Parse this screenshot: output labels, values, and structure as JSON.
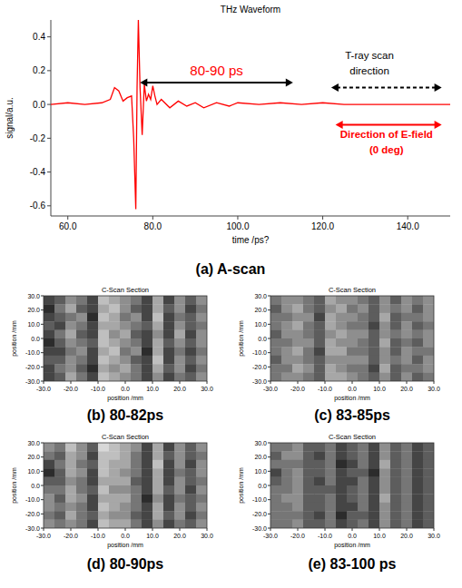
{
  "chart_data": [
    {
      "type": "line",
      "title": "THz Waveform",
      "x_label": "time /ps?",
      "y_label": "signal/a.u.",
      "caption": "(a) A-scan",
      "color": "#ff0000",
      "grid": false,
      "x": [
        56,
        60,
        64,
        68,
        70,
        71,
        72,
        73,
        74,
        75,
        75.5,
        76,
        76.3,
        76.6,
        77,
        77.5,
        78,
        78.5,
        79,
        79.5,
        80,
        80.5,
        81,
        82,
        84,
        86,
        88,
        90,
        92,
        95,
        98,
        100,
        105,
        110,
        115,
        120,
        125,
        130,
        140,
        150
      ],
      "values": [
        0,
        0.01,
        0,
        0.01,
        0.03,
        0.1,
        0.08,
        0.02,
        0.04,
        0.05,
        -0.2,
        -0.62,
        0.1,
        0.5,
        0.1,
        -0.18,
        0.12,
        0.02,
        0.06,
        0.03,
        0.11,
        0.05,
        0,
        0.03,
        -0.02,
        0.02,
        -0.01,
        0.01,
        -0.02,
        0.01,
        -0.01,
        0.01,
        0,
        0.01,
        0,
        0.01,
        0,
        0,
        0,
        0
      ],
      "xlim": [
        56,
        150
      ],
      "ylim": [
        -0.66,
        0.5
      ],
      "xticks": [
        {
          "value": 60,
          "label": "60.0"
        },
        {
          "value": 80,
          "label": "80.0"
        },
        {
          "value": 100,
          "label": "100.0"
        },
        {
          "value": 120,
          "label": "120.0"
        },
        {
          "value": 140,
          "label": "140.0"
        }
      ],
      "yticks": [
        -0.6,
        -0.4,
        -0.2,
        {
          "value": 0,
          "label": "0.0"
        },
        0.2,
        0.4
      ],
      "arrows": [
        {
          "x": [
            77,
            113
          ],
          "y": 0.13,
          "color": "#000000",
          "line_style": "solid"
        },
        {
          "x": [
            122,
            148
          ],
          "y": 0.1,
          "color": "#000000",
          "line_style": "dashed"
        },
        {
          "x": [
            123,
            148
          ],
          "y": -0.12,
          "color": "#ff0000",
          "line_style": "solid"
        }
      ],
      "labels": [
        {
          "text": "80-90 ps",
          "x": 95,
          "y": 0.17,
          "color": "#ff0000"
        },
        {
          "text": "T-ray scan",
          "x": 131,
          "y": 0.27,
          "color": "#000000"
        },
        {
          "text": "direction",
          "x": 131,
          "y": 0.18,
          "color": "#000000"
        },
        {
          "text": "Direction of E-field",
          "x": 135,
          "y": -0.2,
          "color": "#ff0000"
        },
        {
          "text": "(0 deg)",
          "x": 135,
          "y": -0.29,
          "color": "#ff0000"
        }
      ]
    },
    {
      "type": "heatmap",
      "title": "C-Scan Section",
      "x_label": "position /mm",
      "y_label": "position /mm",
      "caption": "(b) 80-82ps",
      "xlim": [
        -30,
        30
      ],
      "ylim": [
        -30,
        30
      ],
      "color_range": [
        0,
        9
      ],
      "xticks": [
        {
          "value": -30,
          "label": "-30.0"
        },
        {
          "value": -20,
          "label": "-20.0"
        },
        {
          "value": -10,
          "label": "-10.0"
        },
        {
          "value": 0,
          "label": "0.0"
        },
        {
          "value": 10,
          "label": "10.0"
        },
        {
          "value": 20,
          "label": "20.0"
        },
        {
          "value": 30,
          "label": "30.0"
        }
      ],
      "yticks": [
        {
          "value": -30,
          "label": "-30.0"
        },
        {
          "value": -20,
          "label": "-20.0"
        },
        {
          "value": -10,
          "label": "-10.0"
        },
        {
          "value": 0,
          "label": "0.0"
        },
        {
          "value": 10,
          "label": "10.0"
        },
        {
          "value": 20,
          "label": "20.0"
        },
        {
          "value": 30,
          "label": "30.0"
        }
      ],
      "cells": [
        [
          2,
          3,
          5,
          4,
          2,
          7,
          6,
          5,
          4,
          2,
          6,
          2,
          5,
          3,
          5
        ],
        [
          1,
          4,
          6,
          3,
          2,
          6,
          7,
          5,
          3,
          2,
          6,
          3,
          5,
          2,
          4
        ],
        [
          2,
          3,
          4,
          5,
          1,
          7,
          6,
          4,
          5,
          2,
          7,
          2,
          4,
          3,
          5
        ],
        [
          3,
          2,
          5,
          4,
          2,
          6,
          6,
          5,
          4,
          3,
          6,
          2,
          5,
          3,
          4
        ],
        [
          2,
          4,
          6,
          3,
          2,
          7,
          5,
          6,
          3,
          2,
          5,
          2,
          6,
          2,
          5
        ],
        [
          1,
          3,
          5,
          4,
          3,
          7,
          6,
          5,
          4,
          2,
          6,
          3,
          5,
          3,
          5
        ],
        [
          2,
          2,
          4,
          5,
          2,
          6,
          7,
          4,
          5,
          1,
          6,
          2,
          4,
          2,
          4
        ],
        [
          3,
          3,
          5,
          4,
          2,
          7,
          6,
          5,
          3,
          2,
          7,
          2,
          5,
          3,
          5
        ],
        [
          2,
          4,
          5,
          3,
          1,
          6,
          5,
          6,
          4,
          2,
          6,
          3,
          5,
          2,
          4
        ],
        [
          2,
          3,
          6,
          4,
          2,
          7,
          6,
          5,
          4,
          2,
          5,
          2,
          4,
          3,
          5
        ]
      ]
    },
    {
      "type": "heatmap",
      "title": "C-Scan Section",
      "x_label": "position /mm",
      "y_label": "position /mm",
      "caption": "(c) 83-85ps",
      "xlim": [
        -30,
        30
      ],
      "ylim": [
        -30,
        30
      ],
      "color_range": [
        0,
        9
      ],
      "xticks": [
        {
          "value": -30,
          "label": "-30.0"
        },
        {
          "value": -20,
          "label": "-20.0"
        },
        {
          "value": -10,
          "label": "-10.0"
        },
        {
          "value": 0,
          "label": "0.0"
        },
        {
          "value": 10,
          "label": "10.0"
        },
        {
          "value": 20,
          "label": "20.0"
        },
        {
          "value": 30,
          "label": "30.0"
        }
      ],
      "yticks": [
        {
          "value": -30,
          "label": "-30.0"
        },
        {
          "value": -20,
          "label": "-20.0"
        },
        {
          "value": -10,
          "label": "-10.0"
        },
        {
          "value": 0,
          "label": "0.0"
        },
        {
          "value": 10,
          "label": "10.0"
        },
        {
          "value": 20,
          "label": "20.0"
        },
        {
          "value": 30,
          "label": "30.0"
        }
      ],
      "cells": [
        [
          4,
          5,
          5,
          4,
          3,
          6,
          5,
          5,
          4,
          3,
          5,
          3,
          5,
          4,
          5
        ],
        [
          3,
          5,
          6,
          4,
          3,
          5,
          6,
          4,
          5,
          3,
          5,
          4,
          5,
          3,
          5
        ],
        [
          4,
          4,
          5,
          5,
          2,
          6,
          5,
          5,
          4,
          3,
          6,
          3,
          4,
          4,
          5
        ],
        [
          4,
          5,
          6,
          4,
          3,
          6,
          5,
          4,
          4,
          2,
          5,
          3,
          5,
          3,
          4
        ],
        [
          3,
          5,
          5,
          4,
          3,
          5,
          6,
          5,
          5,
          3,
          5,
          4,
          5,
          4,
          5
        ],
        [
          4,
          4,
          5,
          5,
          3,
          6,
          5,
          5,
          4,
          3,
          6,
          3,
          4,
          3,
          5
        ],
        [
          4,
          5,
          6,
          4,
          2,
          6,
          6,
          4,
          4,
          3,
          5,
          3,
          5,
          4,
          4
        ],
        [
          3,
          5,
          5,
          4,
          3,
          5,
          5,
          5,
          5,
          3,
          5,
          4,
          5,
          3,
          5
        ],
        [
          4,
          4,
          6,
          5,
          3,
          6,
          5,
          4,
          4,
          2,
          6,
          3,
          4,
          4,
          5
        ],
        [
          4,
          5,
          5,
          4,
          3,
          6,
          6,
          5,
          4,
          3,
          5,
          3,
          5,
          3,
          4
        ]
      ]
    },
    {
      "type": "heatmap",
      "title": "C-Scan Section",
      "x_label": "position /mm",
      "y_label": "position /mm",
      "caption": "(d) 80-90ps",
      "xlim": [
        -30,
        30
      ],
      "ylim": [
        -30,
        30
      ],
      "color_range": [
        0,
        9
      ],
      "xticks": [
        {
          "value": -30,
          "label": "-30.0"
        },
        {
          "value": -20,
          "label": "-20.0"
        },
        {
          "value": -10,
          "label": "-10.0"
        },
        {
          "value": 0,
          "label": "0.0"
        },
        {
          "value": 10,
          "label": "10.0"
        },
        {
          "value": 20,
          "label": "20.0"
        },
        {
          "value": 30,
          "label": "30.0"
        }
      ],
      "yticks": [
        {
          "value": -30,
          "label": "-30.0"
        },
        {
          "value": -20,
          "label": "-20.0"
        },
        {
          "value": -10,
          "label": "-10.0"
        },
        {
          "value": 0,
          "label": "0.0"
        },
        {
          "value": 10,
          "label": "10.0"
        },
        {
          "value": 20,
          "label": "20.0"
        },
        {
          "value": 30,
          "label": "30.0"
        }
      ],
      "cells": [
        [
          5,
          4,
          7,
          5,
          3,
          8,
          7,
          6,
          5,
          2,
          6,
          2,
          5,
          3,
          5
        ],
        [
          4,
          3,
          6,
          5,
          2,
          7,
          7,
          6,
          4,
          2,
          6,
          3,
          5,
          3,
          4
        ],
        [
          2,
          4,
          6,
          4,
          3,
          7,
          6,
          6,
          4,
          2,
          7,
          2,
          5,
          2,
          5
        ],
        [
          1,
          3,
          6,
          5,
          2,
          7,
          6,
          5,
          4,
          2,
          6,
          2,
          4,
          3,
          5
        ],
        [
          3,
          3,
          5,
          4,
          2,
          6,
          6,
          6,
          3,
          2,
          6,
          2,
          5,
          3,
          4
        ],
        [
          4,
          4,
          6,
          4,
          3,
          7,
          5,
          5,
          4,
          2,
          6,
          3,
          5,
          2,
          5
        ],
        [
          5,
          3,
          6,
          5,
          2,
          6,
          6,
          6,
          4,
          1,
          5,
          2,
          4,
          3,
          4
        ],
        [
          5,
          4,
          5,
          4,
          2,
          7,
          6,
          5,
          4,
          2,
          6,
          2,
          5,
          3,
          5
        ],
        [
          4,
          3,
          6,
          4,
          3,
          6,
          5,
          5,
          3,
          2,
          6,
          3,
          5,
          2,
          4
        ],
        [
          5,
          4,
          5,
          4,
          2,
          7,
          6,
          6,
          4,
          2,
          5,
          2,
          4,
          3,
          5
        ]
      ]
    },
    {
      "type": "heatmap",
      "title": "C-Scan Section",
      "x_label": "position /mm",
      "y_label": "position /mm",
      "caption": "(e) 83-100 ps",
      "xlim": [
        -30,
        30
      ],
      "ylim": [
        -30,
        30
      ],
      "color_range": [
        0,
        9
      ],
      "xticks": [
        {
          "value": -30,
          "label": "-30.0"
        },
        {
          "value": -20,
          "label": "-20.0"
        },
        {
          "value": -10,
          "label": "-10.0"
        },
        {
          "value": 0,
          "label": "0.0"
        },
        {
          "value": 10,
          "label": "10.0"
        },
        {
          "value": 20,
          "label": "20.0"
        },
        {
          "value": 30,
          "label": "30.0"
        }
      ],
      "yticks": [
        {
          "value": -30,
          "label": "-30.0"
        },
        {
          "value": -20,
          "label": "-20.0"
        },
        {
          "value": -10,
          "label": "-10.0"
        },
        {
          "value": 0,
          "label": "0.0"
        },
        {
          "value": 10,
          "label": "10.0"
        },
        {
          "value": 20,
          "label": "20.0"
        },
        {
          "value": 30,
          "label": "30.0"
        }
      ],
      "cells": [
        [
          4,
          4,
          5,
          3,
          3,
          4,
          2,
          3,
          4,
          2,
          5,
          3,
          4,
          2,
          3
        ],
        [
          3,
          5,
          5,
          3,
          2,
          4,
          2,
          3,
          4,
          2,
          5,
          3,
          4,
          2,
          3
        ],
        [
          4,
          4,
          4,
          3,
          3,
          4,
          1,
          2,
          4,
          2,
          6,
          3,
          4,
          2,
          3
        ],
        [
          2,
          4,
          5,
          3,
          3,
          4,
          2,
          3,
          3,
          1,
          5,
          3,
          4,
          2,
          3
        ],
        [
          3,
          4,
          5,
          3,
          2,
          4,
          2,
          2,
          4,
          2,
          5,
          3,
          4,
          2,
          3
        ],
        [
          4,
          4,
          5,
          3,
          3,
          3,
          2,
          3,
          4,
          2,
          5,
          3,
          4,
          2,
          3
        ],
        [
          4,
          5,
          5,
          3,
          3,
          4,
          2,
          3,
          4,
          2,
          6,
          3,
          4,
          2,
          3
        ],
        [
          4,
          4,
          5,
          3,
          3,
          4,
          2,
          2,
          4,
          2,
          5,
          3,
          4,
          2,
          3
        ],
        [
          4,
          4,
          4,
          3,
          2,
          4,
          1,
          3,
          3,
          2,
          5,
          3,
          4,
          2,
          3
        ],
        [
          4,
          4,
          5,
          3,
          3,
          4,
          2,
          3,
          4,
          2,
          5,
          3,
          4,
          2,
          3
        ]
      ]
    }
  ]
}
